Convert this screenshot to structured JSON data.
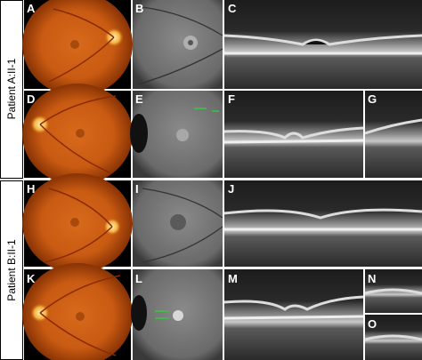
{
  "patients": [
    "Patient A:II-1",
    "Patient B:II-1"
  ],
  "panels": [
    {
      "label": "A"
    },
    {
      "label": "B"
    },
    {
      "label": "C"
    },
    {
      "label": "D"
    },
    {
      "label": "E"
    },
    {
      "label": "F"
    },
    {
      "label": "G"
    },
    {
      "label": "H"
    },
    {
      "label": "I"
    },
    {
      "label": "J"
    },
    {
      "label": "K"
    },
    {
      "label": "L"
    },
    {
      "label": "M"
    },
    {
      "label": "N"
    },
    {
      "label": "O"
    }
  ]
}
